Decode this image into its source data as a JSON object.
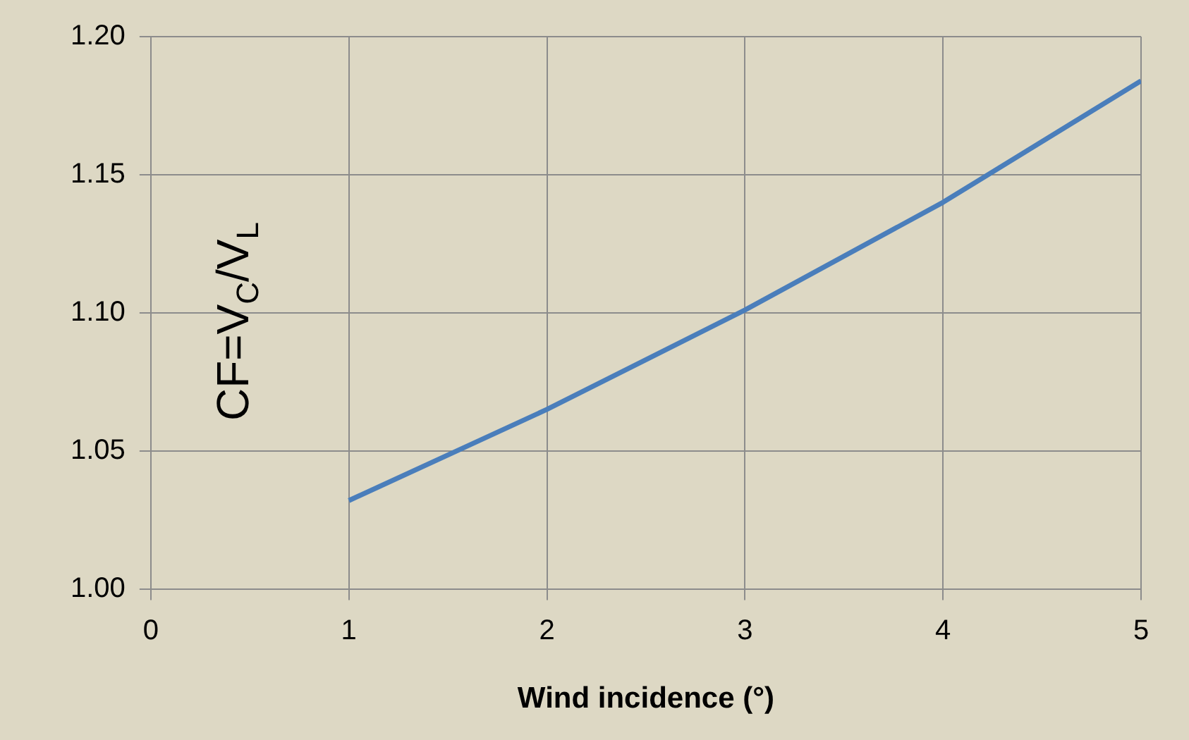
{
  "chart_data": {
    "type": "line",
    "xlabel": "Wind incidence (°)",
    "ylabel": "CF=V$_{C}$/V$_{L}$",
    "x": [
      1,
      2,
      3,
      4,
      5
    ],
    "series": [
      {
        "color": "#4a7ebb",
        "values": [
          1.032,
          1.065,
          1.101,
          1.14,
          1.184
        ]
      }
    ],
    "xlim": [
      0,
      5
    ],
    "xticks": [
      0,
      1,
      2,
      3,
      4,
      5
    ],
    "ylim": [
      1,
      1.2
    ],
    "yticks": [
      {
        "value": 1,
        "label": "1.00"
      },
      {
        "value": 1.05,
        "label": "1.05"
      },
      {
        "value": 1.1,
        "label": "1.10"
      },
      {
        "value": 1.15,
        "label": "1.15"
      },
      {
        "value": 1.2,
        "label": "1.20"
      }
    ],
    "grid": true,
    "legend": false,
    "marker": "none",
    "line_style": "solid"
  }
}
